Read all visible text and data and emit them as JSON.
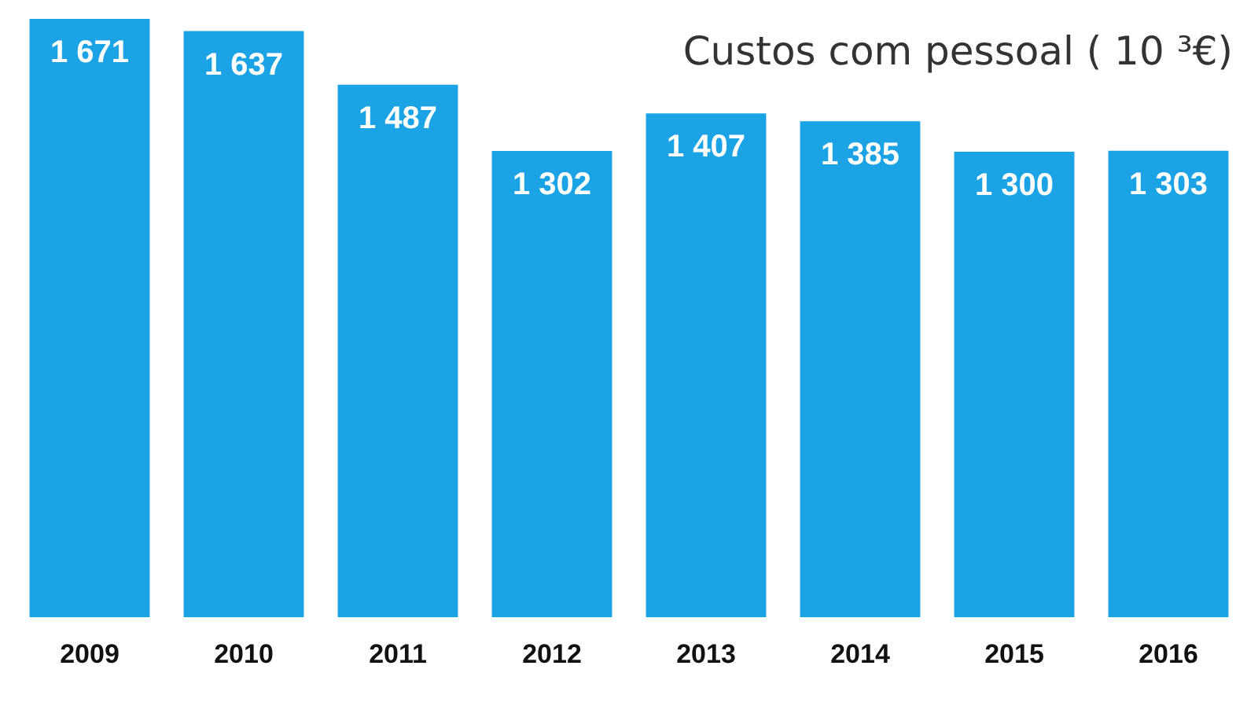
{
  "chart_data": {
    "type": "bar",
    "title": "Custos com pessoal ( 10 ³€)",
    "categories": [
      "2009",
      "2010",
      "2011",
      "2012",
      "2013",
      "2014",
      "2015",
      "2016"
    ],
    "values": [
      1671,
      1637,
      1487,
      1302,
      1407,
      1385,
      1300,
      1303
    ],
    "value_labels": [
      "1 671",
      "1 637",
      "1 487",
      "1 302",
      "1 407",
      "1 385",
      "1 300",
      "1 303"
    ],
    "color": "#1ba3e6",
    "tick_labels": "x",
    "grid": false,
    "legend": false
  }
}
